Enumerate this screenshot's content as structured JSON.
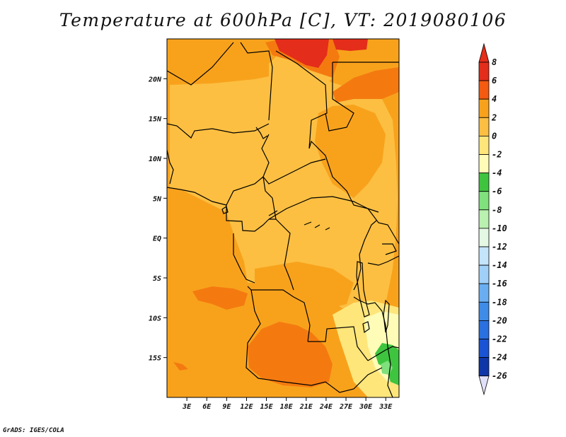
{
  "title": "Temperature at 600hPa [C], VT: 2019080106",
  "credit": "GrADS: IGES/COLA",
  "map": {
    "lon_range": [
      0,
      35
    ],
    "lat_range": [
      -20,
      25
    ],
    "lon_ticks": [
      {
        "value": 3,
        "label": "3E"
      },
      {
        "value": 6,
        "label": "6E"
      },
      {
        "value": 9,
        "label": "9E"
      },
      {
        "value": 12,
        "label": "12E"
      },
      {
        "value": 15,
        "label": "15E"
      },
      {
        "value": 18,
        "label": "18E"
      },
      {
        "value": 21,
        "label": "21E"
      },
      {
        "value": 24,
        "label": "24E"
      },
      {
        "value": 27,
        "label": "27E"
      },
      {
        "value": 30,
        "label": "30E"
      },
      {
        "value": 33,
        "label": "33E"
      }
    ],
    "lat_ticks": [
      {
        "value": 20,
        "label": "20N"
      },
      {
        "value": 15,
        "label": "15N"
      },
      {
        "value": 10,
        "label": "10N"
      },
      {
        "value": 5,
        "label": "5N"
      },
      {
        "value": 0,
        "label": "EQ"
      },
      {
        "value": -5,
        "label": "5S"
      },
      {
        "value": -10,
        "label": "10S"
      },
      {
        "value": -15,
        "label": "15S"
      }
    ],
    "background_level": "2 to 4",
    "background_color": "#f8a21c"
  },
  "colorbar": {
    "labels": [
      "8",
      "6",
      "4",
      "2",
      "0",
      "-2",
      "-4",
      "-6",
      "-8",
      "-10",
      "-12",
      "-14",
      "-16",
      "-18",
      "-20",
      "-22",
      "-24",
      "-26"
    ],
    "colors": [
      "#e42d1a",
      "#f45a10",
      "#f8a21c",
      "#fcbf42",
      "#fee67b",
      "#fefcb6",
      "#3fc43f",
      "#7fe07c",
      "#baf0b0",
      "#e4f8e4",
      "#c3e4fa",
      "#a0d0f8",
      "#6aaef2",
      "#3e8ce8",
      "#2a70e0",
      "#1a54d4",
      "#0e36a8",
      "#081466"
    ],
    "top_arrow_color": "#e42d1a",
    "bottom_arrow_color": "#e0e0f8"
  }
}
